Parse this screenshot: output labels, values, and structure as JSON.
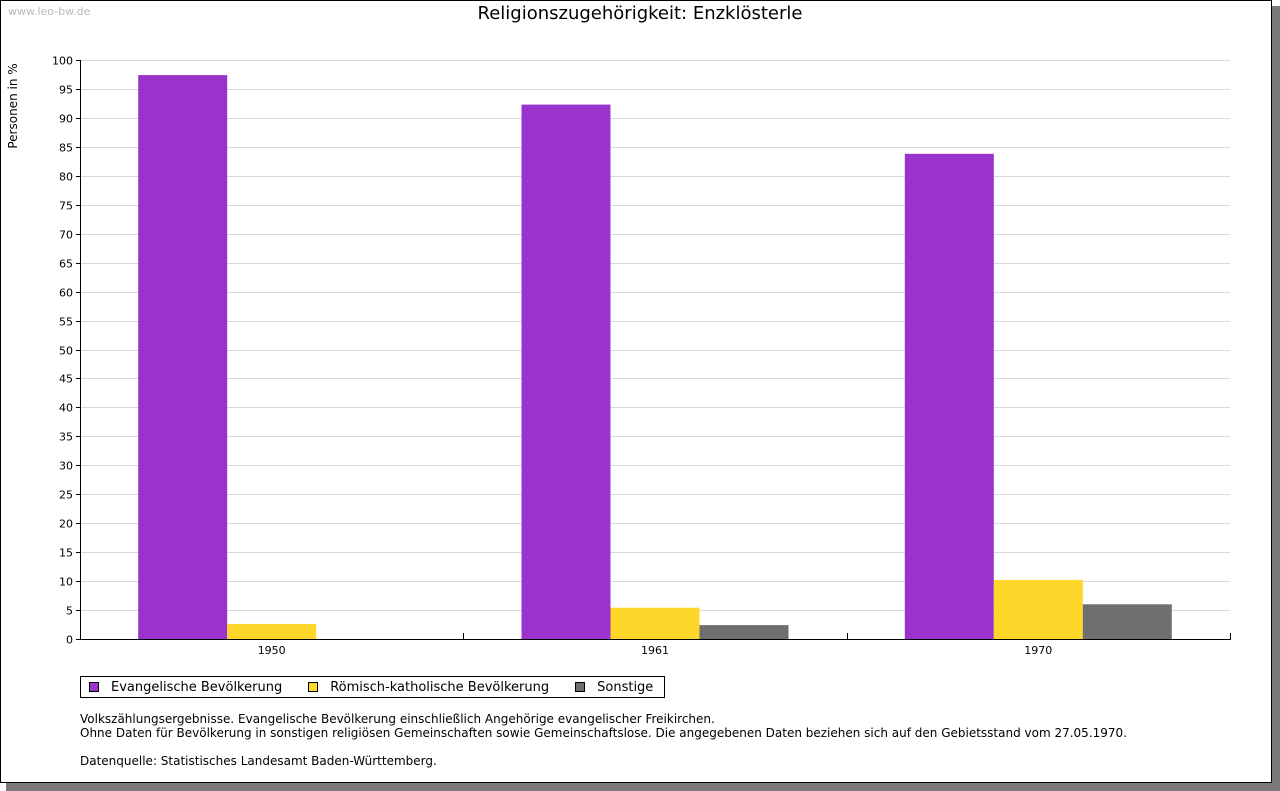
{
  "watermark": "www.leo-bw.de",
  "chart_data": {
    "type": "bar",
    "title": "Religionszugehörigkeit: Enzklösterle",
    "xlabel": "",
    "ylabel": "Personen in %",
    "ylim": [
      0,
      100
    ],
    "ytick_step": 5,
    "grid": true,
    "legend_position": "bottom",
    "categories": [
      "1950",
      "1961",
      "1970"
    ],
    "series": [
      {
        "name": "Evangelische Bevölkerung",
        "color": "#9933cc",
        "values": [
          97.4,
          92.3,
          83.8
        ]
      },
      {
        "name": "Römisch-katholische Bevölkerung",
        "color": "#fdd72a",
        "values": [
          2.6,
          5.4,
          10.2
        ]
      },
      {
        "name": "Sonstige",
        "color": "#6f6f6f",
        "values": [
          null,
          2.4,
          6.0
        ]
      }
    ]
  },
  "notes": {
    "line1": "Volkszählungsergebnisse. Evangelische Bevölkerung einschließlich Angehörige evangelischer Freikirchen.",
    "line2": "Ohne Daten für Bevölkerung in sonstigen religiösen Gemeinschaften sowie Gemeinschaftslose. Die angegebenen Daten beziehen sich auf den Gebietsstand vom 27.05.1970.",
    "source": "Datenquelle: Statistisches Landesamt Baden-Württemberg."
  }
}
